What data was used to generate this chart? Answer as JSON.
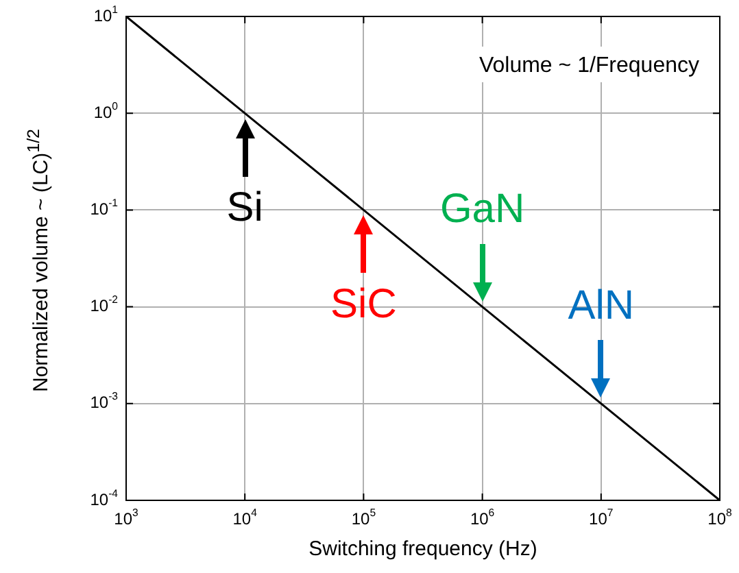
{
  "chart_data": {
    "type": "line",
    "xlabel": "Switching frequency (Hz)",
    "ylabel": "Normalized volume ~ (LC)$^{1/2}$",
    "x": [
      1000,
      100000000
    ],
    "series": [
      {
        "color": "#000000",
        "values": [
          10,
          0.0001
        ]
      }
    ],
    "log": "xy",
    "grid": true,
    "marker": "none",
    "line_style": "solid",
    "xlim": [
      1000,
      100000000
    ],
    "ylim": [
      0.0001,
      10
    ],
    "xticks": [
      {
        "value": 1000,
        "label": "10$^{3}$"
      },
      {
        "value": 10000,
        "label": "10$^{4}$"
      },
      {
        "value": 100000,
        "label": "10$^{5}$"
      },
      {
        "value": 1000000,
        "label": "10$^{6}$"
      },
      {
        "value": 10000000,
        "label": "10$^{7}$"
      },
      {
        "value": 100000000,
        "label": "10$^{8}$"
      }
    ],
    "yticks": [
      {
        "value": 0.0001,
        "label": "10$^{-4}$"
      },
      {
        "value": 0.001,
        "label": "10$^{-3}$"
      },
      {
        "value": 0.01,
        "label": "10$^{-2}$"
      },
      {
        "value": 0.1,
        "label": "10$^{-1}$"
      },
      {
        "value": 1,
        "label": "10$^{0}$"
      },
      {
        "value": 10,
        "label": "10$^{1}$"
      }
    ],
    "annotations": [
      "Volume ~ 1/Frequency",
      {
        "text": "Si",
        "x": 10000,
        "y": 1
      },
      {
        "text": "SiC",
        "x": 100000,
        "y": 0.1
      },
      {
        "text": "GaN",
        "x": 1000000,
        "y": 0.01
      },
      {
        "text": "AlN",
        "x": 10000000,
        "y": 0.001
      }
    ]
  }
}
